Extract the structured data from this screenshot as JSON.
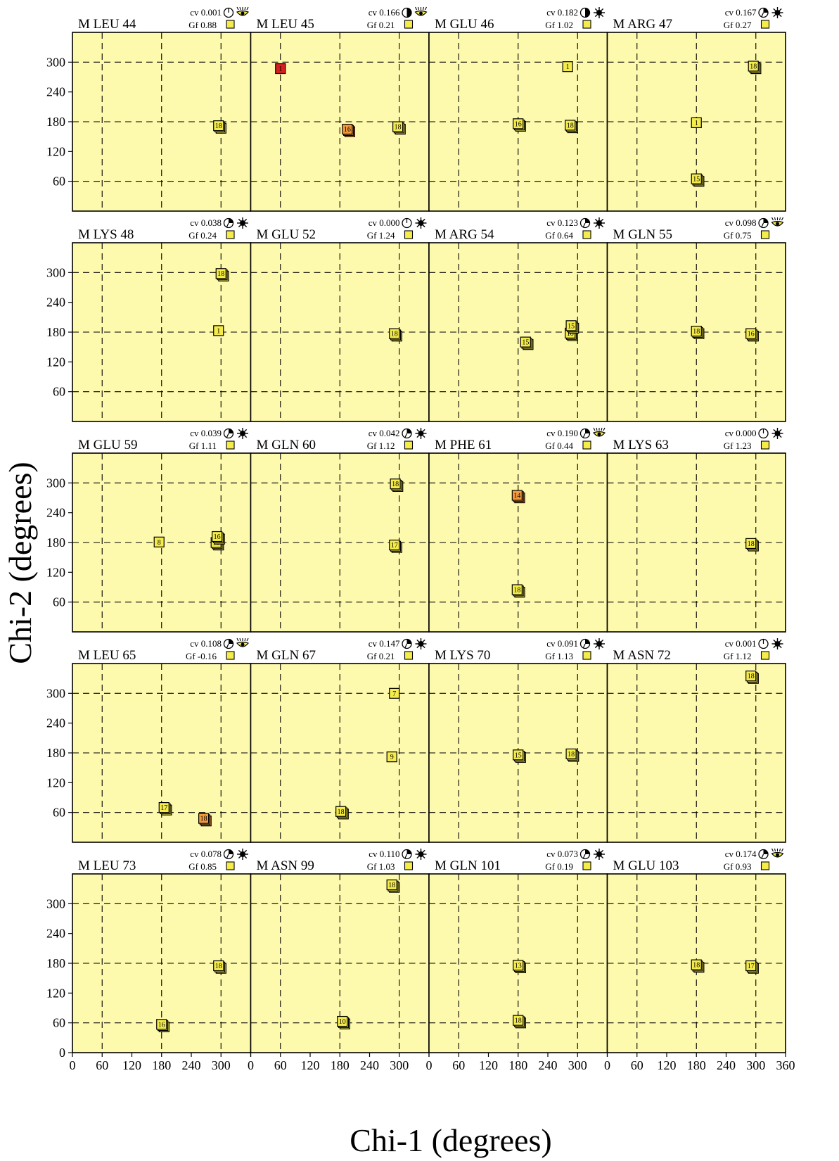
{
  "chart_data": {
    "type": "scatter",
    "xlabel": "Chi-1 (degrees)",
    "ylabel": "Chi-2 (degrees)",
    "xlim": [
      0,
      360
    ],
    "ylim": [
      0,
      360
    ],
    "x_ticks": [
      0,
      60,
      120,
      180,
      240,
      300,
      360
    ],
    "y_ticks": [
      0,
      60,
      120,
      180,
      240,
      300
    ],
    "gridlines_x": [
      60,
      180,
      300
    ],
    "gridlines_y": [
      60,
      180,
      300
    ],
    "grid": true,
    "colors": {
      "panel_background": "#fdf9ad",
      "point_yellow": "#f5ec4a",
      "point_orange": "#f29a3c",
      "point_red": "#d81e1e"
    },
    "panels": [
      {
        "title": "M LEU 44",
        "cv": "cv 0.001",
        "gf": "Gf  0.88",
        "cv_icon": "clock-empty-icon",
        "gf_icon": "eye-icon",
        "points": [
          {
            "x": 295,
            "y": 172,
            "label": "18",
            "color": "yellow"
          }
        ]
      },
      {
        "title": "M LEU 45",
        "cv": "cv 0.166",
        "gf": "Gf  0.21",
        "cv_icon": "clock-half-icon",
        "gf_icon": "eye-icon",
        "points": [
          {
            "x": 60,
            "y": 287,
            "label": "1",
            "color": "red"
          },
          {
            "x": 195,
            "y": 165,
            "label": "16",
            "color": "orange"
          },
          {
            "x": 297,
            "y": 170,
            "label": "18",
            "color": "yellow"
          }
        ]
      },
      {
        "title": "M GLU 46",
        "cv": "cv 0.182",
        "gf": "Gf  1.02",
        "cv_icon": "clock-half-icon",
        "gf_icon": "sun-icon",
        "points": [
          {
            "x": 280,
            "y": 291,
            "label": "1",
            "color": "yellow"
          },
          {
            "x": 180,
            "y": 176,
            "label": "16",
            "color": "yellow"
          },
          {
            "x": 285,
            "y": 173,
            "label": "18",
            "color": "yellow"
          }
        ]
      },
      {
        "title": "M ARG 47",
        "cv": "cv 0.167",
        "gf": "Gf  0.27",
        "cv_icon": "clock-quarter-icon",
        "gf_icon": "sun-icon",
        "points": [
          {
            "x": 295,
            "y": 292,
            "label": "18",
            "color": "yellow"
          },
          {
            "x": 180,
            "y": 178,
            "label": "1",
            "color": "yellow"
          },
          {
            "x": 180,
            "y": 65,
            "label": "15",
            "color": "yellow"
          }
        ]
      },
      {
        "title": "M LYS 48",
        "cv": "cv 0.038",
        "gf": "Gf  0.24",
        "cv_icon": "clock-quarter-icon",
        "gf_icon": "sun-icon",
        "points": [
          {
            "x": 300,
            "y": 298,
            "label": "18",
            "color": "yellow"
          },
          {
            "x": 295,
            "y": 183,
            "label": "1",
            "color": "yellow"
          }
        ]
      },
      {
        "title": "M GLU 52",
        "cv": "cv 0.000",
        "gf": "Gf  1.24",
        "cv_icon": "clock-empty-icon",
        "gf_icon": "sun-icon",
        "points": [
          {
            "x": 290,
            "y": 177,
            "label": "18",
            "color": "yellow"
          }
        ]
      },
      {
        "title": "M ARG 54",
        "cv": "cv 0.123",
        "gf": "Gf  0.64",
        "cv_icon": "clock-quarter-icon",
        "gf_icon": "sun-icon",
        "points": [
          {
            "x": 285,
            "y": 178,
            "label": "18",
            "color": "yellow"
          },
          {
            "x": 287,
            "y": 193,
            "label": "15",
            "color": "yellow"
          },
          {
            "x": 195,
            "y": 160,
            "label": "15",
            "color": "yellow"
          }
        ]
      },
      {
        "title": "M GLN 55",
        "cv": "cv 0.098",
        "gf": "Gf  0.75",
        "cv_icon": "clock-quarter-icon",
        "gf_icon": "eye-icon",
        "points": [
          {
            "x": 180,
            "y": 182,
            "label": "18",
            "color": "yellow"
          },
          {
            "x": 290,
            "y": 177,
            "label": "16",
            "color": "yellow"
          }
        ]
      },
      {
        "title": "M GLU 59",
        "cv": "cv 0.039",
        "gf": "Gf  1.11",
        "cv_icon": "clock-quarter-icon",
        "gf_icon": "sun-icon",
        "points": [
          {
            "x": 175,
            "y": 181,
            "label": "8",
            "color": "yellow"
          },
          {
            "x": 290,
            "y": 180,
            "label": "18",
            "color": "yellow"
          },
          {
            "x": 292,
            "y": 192,
            "label": "16",
            "color": "yellow"
          }
        ]
      },
      {
        "title": "M GLN 60",
        "cv": "cv 0.042",
        "gf": "Gf  1.12",
        "cv_icon": "clock-quarter-icon",
        "gf_icon": "sun-icon",
        "points": [
          {
            "x": 292,
            "y": 298,
            "label": "18",
            "color": "yellow"
          },
          {
            "x": 290,
            "y": 175,
            "label": "17",
            "color": "yellow"
          }
        ]
      },
      {
        "title": "M PHE 61",
        "cv": "cv 0.190",
        "gf": "Gf  0.44",
        "cv_icon": "clock-quarter-icon",
        "gf_icon": "eye-icon",
        "points": [
          {
            "x": 178,
            "y": 275,
            "label": "14",
            "color": "orange"
          },
          {
            "x": 178,
            "y": 85,
            "label": "18",
            "color": "yellow"
          }
        ]
      },
      {
        "title": "M LYS 63",
        "cv": "cv 0.000",
        "gf": "Gf  1.23",
        "cv_icon": "clock-empty-icon",
        "gf_icon": "sun-icon",
        "points": [
          {
            "x": 290,
            "y": 178,
            "label": "18",
            "color": "yellow"
          }
        ]
      },
      {
        "title": "M LEU 65",
        "cv": "cv 0.108",
        "gf": "Gf -0.16",
        "cv_icon": "clock-quarter-icon",
        "gf_icon": "eye-icon",
        "points": [
          {
            "x": 185,
            "y": 70,
            "label": "17",
            "color": "yellow"
          },
          {
            "x": 265,
            "y": 48,
            "label": "18",
            "color": "orange"
          }
        ]
      },
      {
        "title": "M GLN 67",
        "cv": "cv 0.147",
        "gf": "Gf  0.21",
        "cv_icon": "clock-quarter-icon",
        "gf_icon": "sun-icon",
        "points": [
          {
            "x": 290,
            "y": 300,
            "label": "7",
            "color": "yellow"
          },
          {
            "x": 285,
            "y": 172,
            "label": "9",
            "color": "yellow"
          },
          {
            "x": 182,
            "y": 62,
            "label": "18",
            "color": "yellow"
          }
        ]
      },
      {
        "title": "M LYS 70",
        "cv": "cv 0.091",
        "gf": "Gf  1.13",
        "cv_icon": "clock-quarter-icon",
        "gf_icon": "sun-icon",
        "points": [
          {
            "x": 180,
            "y": 176,
            "label": "15",
            "color": "yellow"
          },
          {
            "x": 287,
            "y": 178,
            "label": "18",
            "color": "yellow"
          }
        ]
      },
      {
        "title": "M ASN 72",
        "cv": "cv 0.001",
        "gf": "Gf  1.12",
        "cv_icon": "clock-empty-icon",
        "gf_icon": "sun-icon",
        "points": [
          {
            "x": 290,
            "y": 335,
            "label": "18",
            "color": "yellow"
          }
        ]
      },
      {
        "title": "M LEU 73",
        "cv": "cv 0.078",
        "gf": "Gf  0.85",
        "cv_icon": "clock-quarter-icon",
        "gf_icon": "sun-icon",
        "points": [
          {
            "x": 295,
            "y": 175,
            "label": "18",
            "color": "yellow"
          },
          {
            "x": 180,
            "y": 57,
            "label": "16",
            "color": "yellow"
          }
        ]
      },
      {
        "title": "M ASN 99",
        "cv": "cv 0.110",
        "gf": "Gf  1.03",
        "cv_icon": "clock-quarter-icon",
        "gf_icon": "sun-icon",
        "points": [
          {
            "x": 285,
            "y": 338,
            "label": "18",
            "color": "yellow"
          },
          {
            "x": 185,
            "y": 63,
            "label": "10",
            "color": "yellow"
          }
        ]
      },
      {
        "title": "M GLN 101",
        "cv": "cv 0.073",
        "gf": "Gf  0.19",
        "cv_icon": "clock-quarter-icon",
        "gf_icon": "sun-icon",
        "points": [
          {
            "x": 180,
            "y": 176,
            "label": "13",
            "color": "yellow"
          },
          {
            "x": 180,
            "y": 65,
            "label": "18",
            "color": "yellow"
          }
        ]
      },
      {
        "title": "M GLU 103",
        "cv": "cv 0.174",
        "gf": "Gf  0.93",
        "cv_icon": "clock-quarter-icon",
        "gf_icon": "eye-icon",
        "points": [
          {
            "x": 180,
            "y": 177,
            "label": "18",
            "color": "yellow"
          },
          {
            "x": 290,
            "y": 175,
            "label": "17",
            "color": "yellow"
          }
        ]
      }
    ]
  }
}
